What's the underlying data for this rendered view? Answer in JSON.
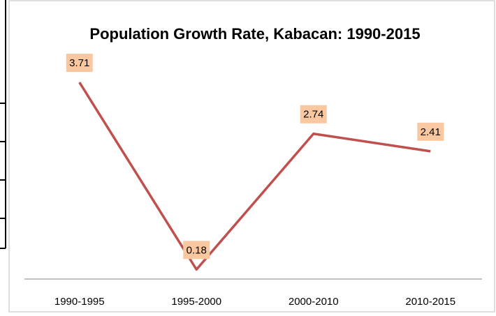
{
  "chart_data": {
    "type": "line",
    "title": "Population Growth Rate, Kabacan: 1990-2015",
    "categories": [
      "1990-1995",
      "1995-2000",
      "2000-2010",
      "2010-2015"
    ],
    "values": [
      3.71,
      0.18,
      2.74,
      2.41
    ],
    "color": "#c0504d",
    "label_color": "#fac8a0",
    "ylim": [
      0,
      4
    ]
  }
}
